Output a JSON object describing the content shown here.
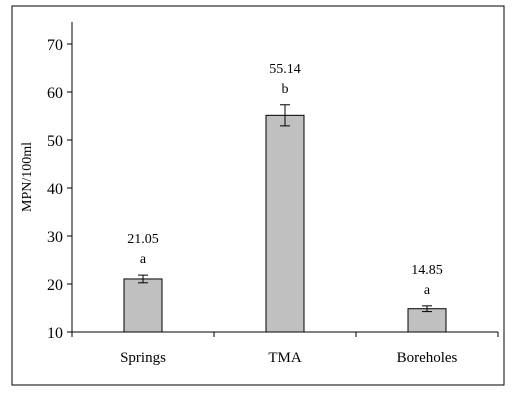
{
  "chart_data": {
    "type": "bar",
    "title": "",
    "xlabel": "",
    "ylabel": "MPN/100ml",
    "ylim": [
      10,
      70
    ],
    "yticks": [
      10,
      20,
      30,
      40,
      50,
      60,
      70
    ],
    "grid": false,
    "categories": [
      "Springs",
      "TMA",
      "Boreholes"
    ],
    "values": [
      21.05,
      55.14,
      14.85
    ],
    "value_labels": [
      "21.05",
      "55.14",
      "14.85"
    ],
    "error": [
      0.8,
      2.2,
      0.6
    ],
    "group_letters": [
      "a",
      "b",
      "a"
    ],
    "colors": {
      "bar_fill": "#c0c0c0",
      "bar_stroke": "#000000",
      "frame": "#000000"
    }
  }
}
